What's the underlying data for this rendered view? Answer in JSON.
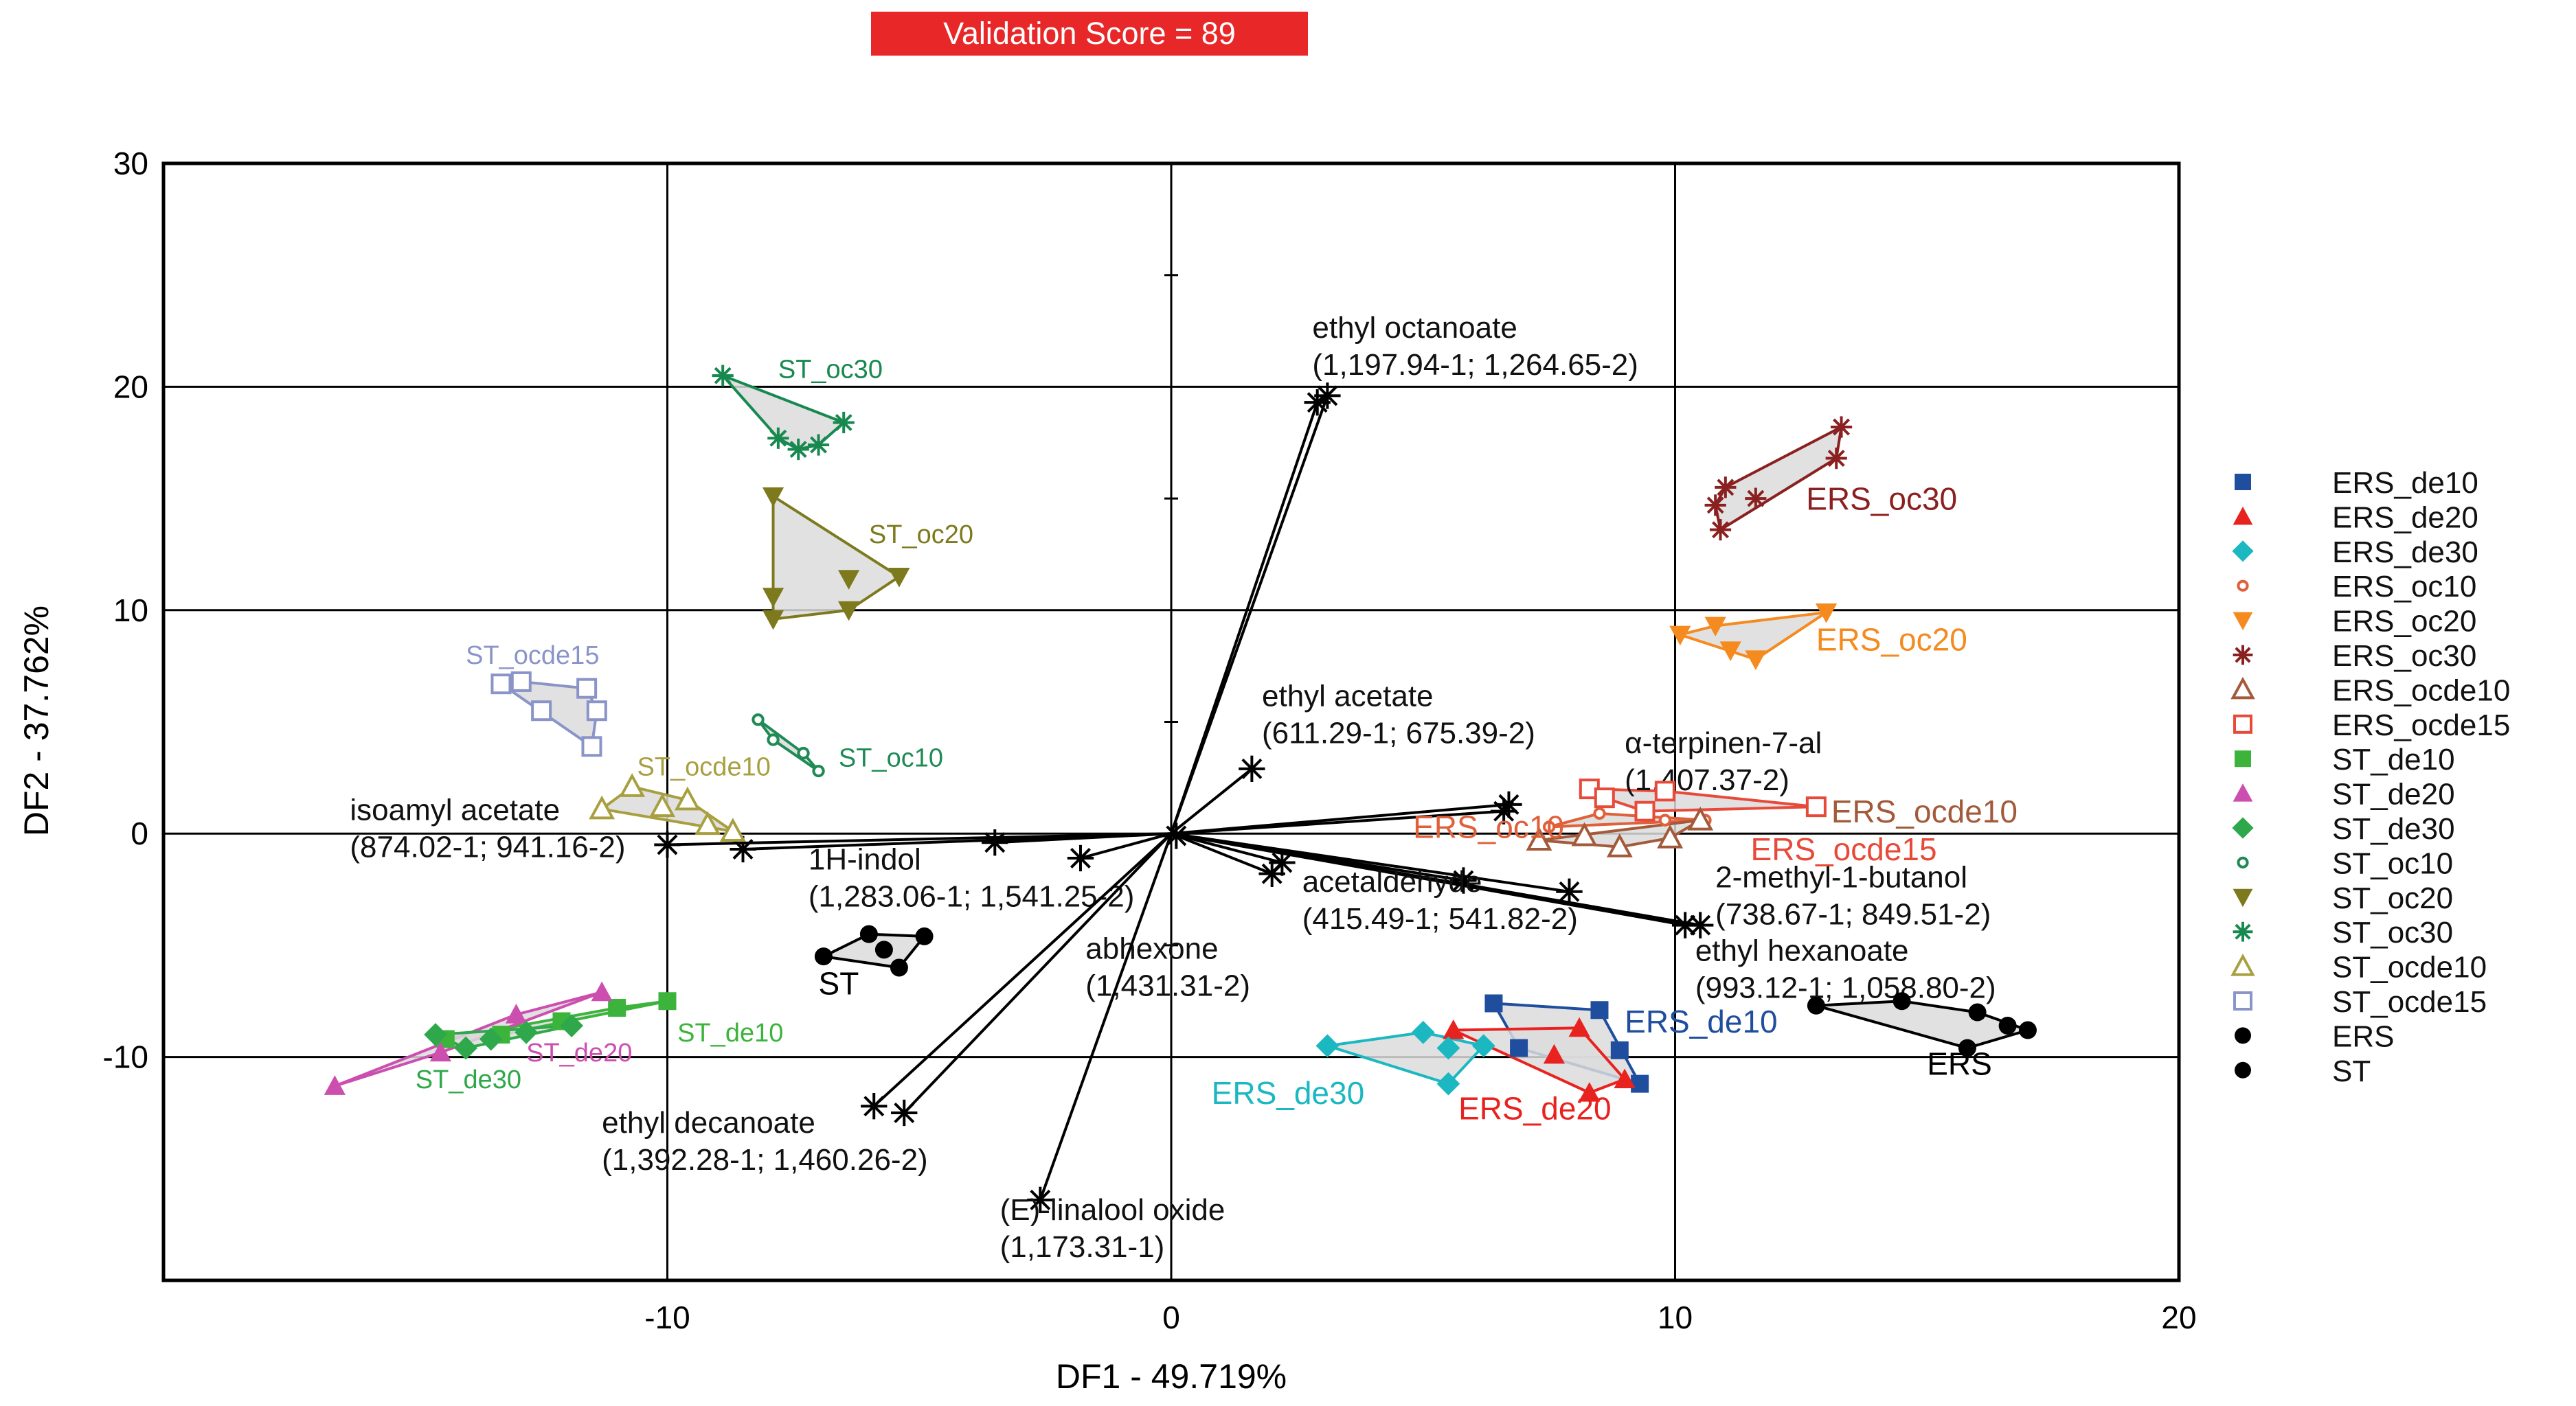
{
  "validation_badge": "Validation Score = 89",
  "colors": {
    "ERS_de10": "#1f4e9e",
    "ERS_de20": "#e8231f",
    "ERS_de30": "#1bb8c2",
    "ERS_oc10": "#e0603a",
    "ERS_oc20": "#f58a1f",
    "ERS_oc30": "#8b2020",
    "ERS_ocde10": "#a35a3a",
    "ERS_ocde15": "#e84a3a",
    "ST_de10": "#3cb43c",
    "ST_de20": "#cc4fb0",
    "ST_de30": "#2ea84a",
    "ST_oc10": "#1e8a55",
    "ST_oc20": "#7d7a1e",
    "ST_oc30": "#17894f",
    "ST_ocde10": "#a8a040",
    "ST_ocde15": "#8a94c8",
    "ERS": "#000000",
    "ST": "#000000",
    "vector": "#000000"
  },
  "chart_data": {
    "type": "scatter",
    "xlabel": "DF1 - 49.719%",
    "ylabel": "DF2 - 37.762%",
    "xlim": [
      -20,
      20
    ],
    "ylim": [
      -20,
      30
    ],
    "xticks": [
      -10,
      0,
      10,
      20
    ],
    "yticks": [
      -10,
      0,
      10,
      20,
      30
    ],
    "xtick_labels": [
      "-10",
      "0",
      "10",
      "20"
    ],
    "ytick_labels": [
      "-10",
      "0",
      "10",
      "20",
      "30"
    ],
    "grid": true,
    "legend_position": "right",
    "series": [
      {
        "name": "ERS_de10",
        "marker": "square",
        "label": "ERS_de10",
        "label_pos": [
          9.0,
          -8.9
        ],
        "points": [
          [
            6.4,
            -7.6
          ],
          [
            8.5,
            -7.9
          ],
          [
            6.9,
            -9.6
          ],
          [
            8.9,
            -9.7
          ],
          [
            9.3,
            -11.2
          ]
        ]
      },
      {
        "name": "ERS_de20",
        "marker": "triangle",
        "label": "ERS_de20",
        "label_pos": [
          5.7,
          -12.8
        ],
        "points": [
          [
            5.6,
            -8.8
          ],
          [
            7.6,
            -9.9
          ],
          [
            8.1,
            -8.7
          ],
          [
            8.3,
            -11.6
          ],
          [
            9.0,
            -11.0
          ]
        ]
      },
      {
        "name": "ERS_de30",
        "marker": "diamond",
        "label": "ERS_de30",
        "label_pos": [
          0.8,
          -12.1
        ],
        "points": [
          [
            3.1,
            -9.5
          ],
          [
            5.0,
            -8.9
          ],
          [
            5.5,
            -9.6
          ],
          [
            5.5,
            -11.2
          ],
          [
            6.2,
            -9.5
          ]
        ]
      },
      {
        "name": "ERS_oc10",
        "marker": "dot",
        "label": "ERS_oc10",
        "label_pos": [
          4.8,
          -0.2
        ],
        "points": [
          [
            7.5,
            0.3
          ],
          [
            8.5,
            0.9
          ],
          [
            9.8,
            0.6
          ],
          [
            10.6,
            0.6
          ]
        ]
      },
      {
        "name": "ERS_oc20",
        "marker": "triangle-down",
        "label": "ERS_oc20",
        "label_pos": [
          12.8,
          8.2
        ],
        "points": [
          [
            10.1,
            8.9
          ],
          [
            10.8,
            9.3
          ],
          [
            11.1,
            8.2
          ],
          [
            11.6,
            7.8
          ],
          [
            13.0,
            9.9
          ]
        ]
      },
      {
        "name": "ERS_oc30",
        "marker": "asterisk",
        "label": "ERS_oc30",
        "label_pos": [
          12.6,
          14.5
        ],
        "points": [
          [
            10.8,
            14.7
          ],
          [
            11.0,
            15.5
          ],
          [
            10.9,
            13.6
          ],
          [
            11.6,
            15.0
          ],
          [
            13.2,
            16.8
          ],
          [
            13.3,
            18.2
          ]
        ]
      },
      {
        "name": "ERS_ocde10",
        "marker": "triangle-open",
        "label": "ERS_ocde10",
        "label_pos": [
          13.1,
          0.5
        ],
        "points": [
          [
            7.3,
            -0.3
          ],
          [
            8.2,
            -0.1
          ],
          [
            8.9,
            -0.6
          ],
          [
            9.9,
            -0.2
          ],
          [
            10.5,
            0.6
          ]
        ]
      },
      {
        "name": "ERS_ocde15",
        "marker": "square-open",
        "label": "ERS_ocde15",
        "label_pos": [
          11.5,
          -1.2
        ],
        "points": [
          [
            8.3,
            2.0
          ],
          [
            8.6,
            1.6
          ],
          [
            9.4,
            1.0
          ],
          [
            9.8,
            1.9
          ],
          [
            12.8,
            1.2
          ]
        ]
      },
      {
        "name": "ST_de10",
        "marker": "square",
        "label": "ST_de10",
        "label_pos": [
          -9.8,
          -9.3
        ],
        "points": [
          [
            -14.4,
            -9.2
          ],
          [
            -13.3,
            -9.0
          ],
          [
            -12.1,
            -8.4
          ],
          [
            -11.0,
            -7.8
          ],
          [
            -10.0,
            -7.5
          ]
        ]
      },
      {
        "name": "ST_de20",
        "marker": "triangle",
        "label": "ST_de20",
        "label_pos": [
          -12.8,
          -10.2
        ],
        "points": [
          [
            -16.6,
            -11.3
          ],
          [
            -14.5,
            -9.8
          ],
          [
            -13.0,
            -8.1
          ],
          [
            -11.3,
            -7.1
          ]
        ]
      },
      {
        "name": "ST_de30",
        "marker": "diamond",
        "label": "ST_de30",
        "label_pos": [
          -15.0,
          -11.4
        ],
        "points": [
          [
            -14.6,
            -9.0
          ],
          [
            -14.0,
            -9.6
          ],
          [
            -13.5,
            -9.2
          ],
          [
            -12.8,
            -8.9
          ],
          [
            -11.9,
            -8.6
          ]
        ]
      },
      {
        "name": "ST_oc10",
        "marker": "dot",
        "label": "ST_oc10",
        "label_pos": [
          -6.6,
          3.0
        ],
        "points": [
          [
            -8.2,
            5.1
          ],
          [
            -7.9,
            4.2
          ],
          [
            -7.3,
            3.6
          ],
          [
            -7.0,
            2.8
          ]
        ]
      },
      {
        "name": "ST_oc20",
        "marker": "triangle-down",
        "label": "ST_oc20",
        "label_pos": [
          -6.0,
          13.0
        ],
        "points": [
          [
            -7.9,
            15.1
          ],
          [
            -7.9,
            10.6
          ],
          [
            -7.9,
            9.6
          ],
          [
            -6.4,
            11.4
          ],
          [
            -5.4,
            11.5
          ],
          [
            -6.4,
            10.0
          ]
        ]
      },
      {
        "name": "ST_oc30",
        "marker": "asterisk",
        "label": "ST_oc30",
        "label_pos": [
          -7.8,
          20.4
        ],
        "points": [
          [
            -8.9,
            20.5
          ],
          [
            -7.8,
            17.7
          ],
          [
            -7.4,
            17.2
          ],
          [
            -7.0,
            17.4
          ],
          [
            -6.5,
            18.4
          ]
        ]
      },
      {
        "name": "ST_ocde10",
        "marker": "triangle-open",
        "label": "ST_ocde10",
        "label_pos": [
          -10.6,
          2.6
        ],
        "points": [
          [
            -11.3,
            1.1
          ],
          [
            -10.7,
            2.1
          ],
          [
            -10.1,
            1.2
          ],
          [
            -9.6,
            1.5
          ],
          [
            -9.2,
            0.4
          ],
          [
            -8.7,
            0.1
          ]
        ]
      },
      {
        "name": "ST_ocde15",
        "marker": "square-open",
        "label": "ST_ocde15",
        "label_pos": [
          -14.0,
          7.6
        ],
        "points": [
          [
            -13.3,
            6.7
          ],
          [
            -12.9,
            6.8
          ],
          [
            -12.5,
            5.5
          ],
          [
            -11.6,
            6.5
          ],
          [
            -11.4,
            5.5
          ],
          [
            -11.5,
            3.9
          ]
        ]
      },
      {
        "name": "ERS",
        "marker": "circle",
        "label": "ERS",
        "label_pos": [
          15.0,
          -10.8
        ],
        "points": [
          [
            12.8,
            -7.7
          ],
          [
            14.5,
            -7.5
          ],
          [
            15.8,
            -9.6
          ],
          [
            16.0,
            -8.0
          ],
          [
            16.6,
            -8.6
          ],
          [
            17.0,
            -8.8
          ]
        ]
      },
      {
        "name": "ST",
        "marker": "circle",
        "label": "ST",
        "label_pos": [
          -7.0,
          -7.2
        ],
        "points": [
          [
            -6.9,
            -5.5
          ],
          [
            -6.0,
            -4.5
          ],
          [
            -5.7,
            -5.2
          ],
          [
            -5.4,
            -6.0
          ],
          [
            -4.9,
            -4.6
          ]
        ]
      }
    ],
    "vectors": [
      {
        "name": "ethyl octanoate",
        "coords": "(1,197.94-1; 1,264.65-2)",
        "tips": [
          [
            2.9,
            19.3
          ],
          [
            3.1,
            19.6
          ]
        ],
        "label_pos": [
          2.8,
          22.2
        ]
      },
      {
        "name": "ethyl acetate",
        "coords": "(611.29-1; 675.39-2)",
        "tips": [
          [
            1.6,
            2.9
          ]
        ],
        "label_pos": [
          1.8,
          5.7
        ]
      },
      {
        "name": "α-terpinen-7-al",
        "coords": "(1,407.37-2)",
        "tips": [
          [
            6.6,
            1.0
          ],
          [
            6.7,
            1.3
          ]
        ],
        "label_pos": [
          9.0,
          3.6
        ]
      },
      {
        "name": "2-methyl-1-butanol",
        "coords": "(738.67-1; 849.51-2)",
        "tips": [
          [
            10.2,
            -4.1
          ],
          [
            10.5,
            -4.1
          ]
        ],
        "label_pos": [
          10.8,
          -2.4
        ]
      },
      {
        "name": "ethyl hexanoate",
        "coords": "(993.12-1; 1,058.80-2)",
        "tips": [
          [
            7.9,
            -2.6
          ],
          [
            5.8,
            -2.1
          ]
        ],
        "label_pos": [
          10.4,
          -5.7
        ]
      },
      {
        "name": "acetaldehyde",
        "coords": "(415.49-1; 541.82-2)",
        "tips": [
          [
            2.0,
            -1.8
          ],
          [
            2.2,
            -1.3
          ]
        ],
        "label_pos": [
          2.6,
          -2.6
        ]
      },
      {
        "name": "isoamyl acetate",
        "coords": "(874.02-1; 941.16-2)",
        "tips": [
          [
            -10.0,
            -0.5
          ],
          [
            -8.5,
            -0.7
          ]
        ],
        "label_pos": [
          -16.3,
          0.6
        ]
      },
      {
        "name": "1H-indol",
        "coords": "(1,283.06-1; 1,541.25-2)",
        "tips": [
          [
            -3.5,
            -0.4
          ],
          [
            -1.8,
            -1.1
          ]
        ],
        "label_pos": [
          -7.2,
          -1.6
        ]
      },
      {
        "name": "abhexone",
        "coords": "(1,431.31-2)",
        "tips": [
          [
            0.1,
            -0.1
          ]
        ],
        "label_pos": [
          -1.7,
          -5.6
        ]
      },
      {
        "name": "ethyl decanoate",
        "coords": "(1,392.28-1; 1,460.26-2)",
        "tips": [
          [
            -5.9,
            -12.2
          ],
          [
            -5.3,
            -12.5
          ]
        ],
        "label_pos": [
          -11.3,
          -13.4
        ]
      },
      {
        "name": "(E)-linalool oxide",
        "coords": "(1,173.31-1)",
        "tips": [
          [
            -2.6,
            -16.4
          ]
        ],
        "label_pos": [
          -3.4,
          -17.3
        ]
      }
    ],
    "legend": [
      "ERS_de10",
      "ERS_de20",
      "ERS_de30",
      "ERS_oc10",
      "ERS_oc20",
      "ERS_oc30",
      "ERS_ocde10",
      "ERS_ocde15",
      "ST_de10",
      "ST_de20",
      "ST_de30",
      "ST_oc10",
      "ST_oc20",
      "ST_oc30",
      "ST_ocde10",
      "ST_ocde15",
      "ERS",
      "ST"
    ]
  }
}
